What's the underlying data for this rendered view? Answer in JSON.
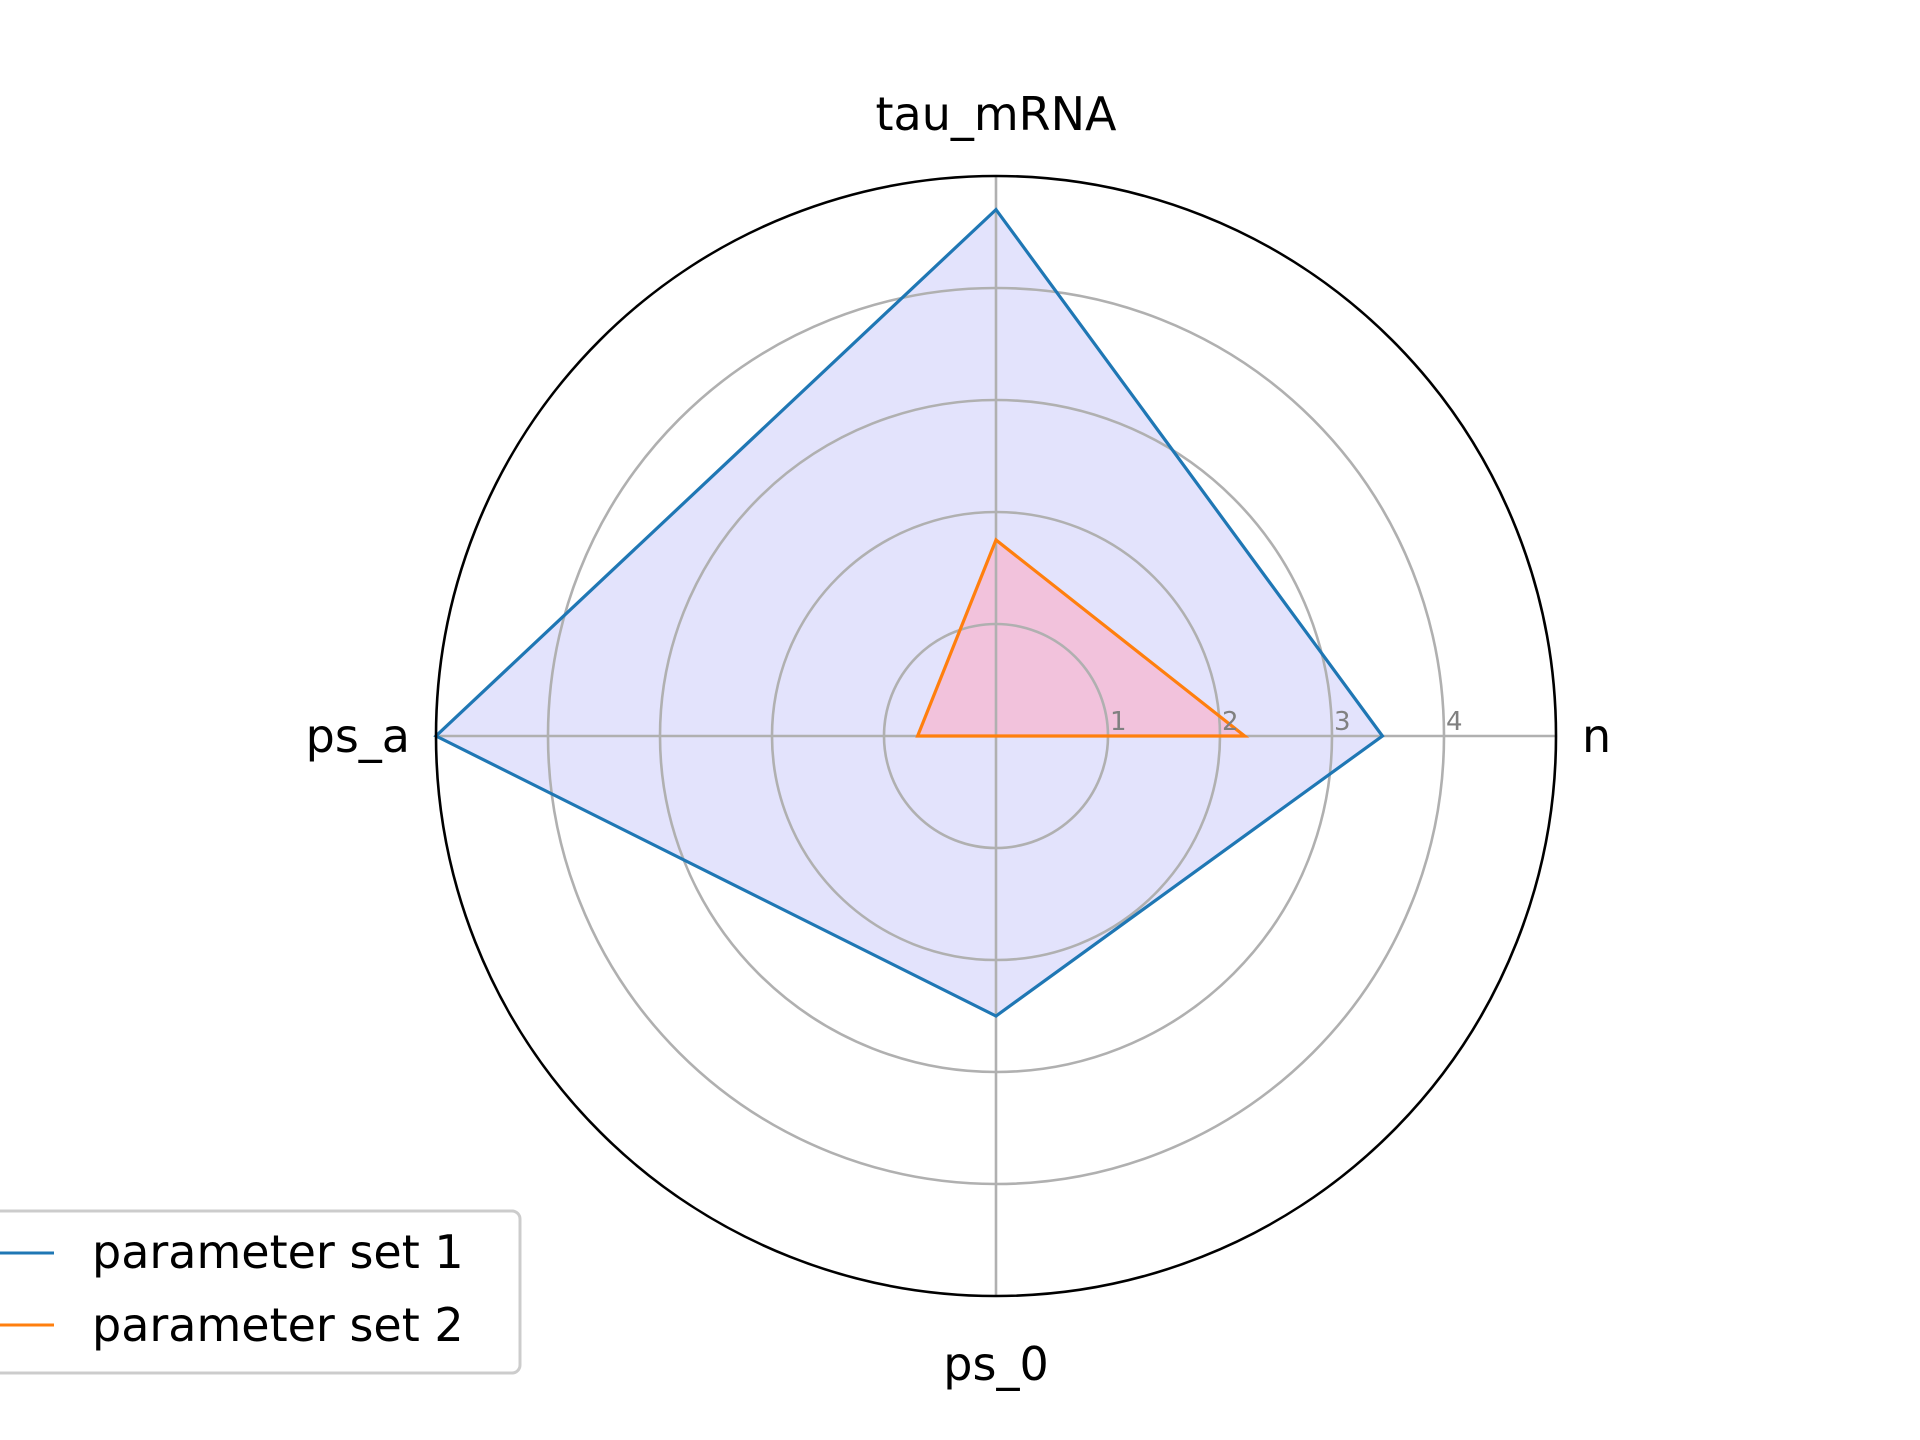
{
  "chart_data": {
    "type": "radar",
    "title": "",
    "axes": [
      "n",
      "tau_mRNA",
      "ps_a",
      "ps_0"
    ],
    "rlim": [
      0,
      5
    ],
    "r_ticks": [
      1,
      2,
      3,
      4
    ],
    "r_tick_labels": [
      "1",
      "2",
      "3",
      "4"
    ],
    "grid": true,
    "legend_position": "lower-left",
    "series": [
      {
        "name": "parameter set 1",
        "values": [
          3.45,
          4.7,
          5.0,
          2.5
        ],
        "color": "#1f77b4",
        "fill": "#e3e3fc"
      },
      {
        "name": "parameter set 2",
        "values": [
          2.22,
          1.75,
          0.7,
          0
        ],
        "color": "#ff7f0e",
        "fill": "#f2c2dc"
      }
    ]
  }
}
